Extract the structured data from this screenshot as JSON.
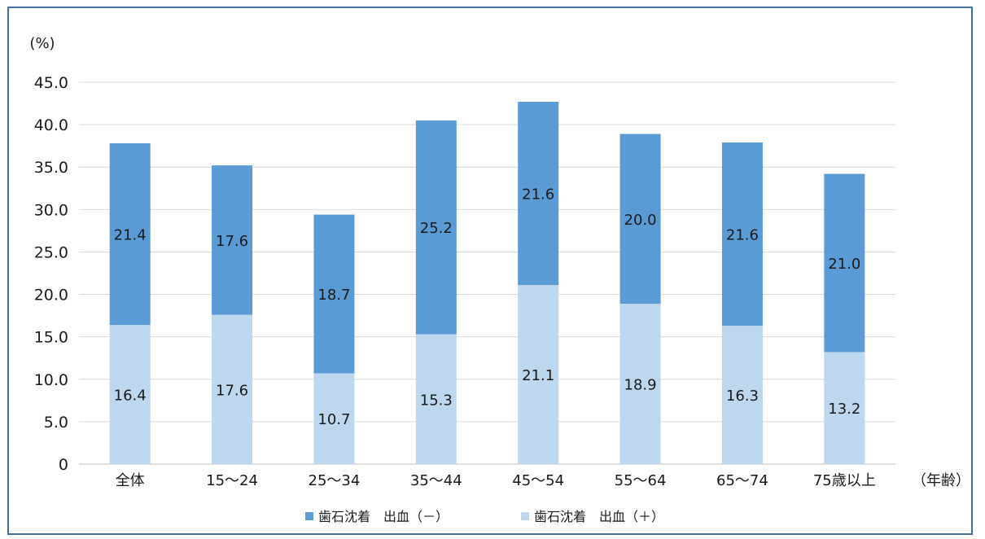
{
  "chart_data": {
    "type": "bar",
    "stacked": true,
    "ylabel": "(%)",
    "xlabel": "（年齢）",
    "ylim": [
      0,
      45
    ],
    "yticks": [
      "0",
      "5.0",
      "10.0",
      "15.0",
      "20.0",
      "25.0",
      "30.0",
      "35.0",
      "40.0",
      "45.0"
    ],
    "grid": true,
    "legend_position": "bottom",
    "categories": [
      "全体",
      "15～24",
      "25～34",
      "35～44",
      "45～54",
      "55～64",
      "65～74",
      "75歳以上"
    ],
    "series": [
      {
        "name": "歯石沈着　出血（＋）",
        "color": "#bdd7ee",
        "values": [
          16.4,
          17.6,
          10.7,
          15.3,
          21.1,
          18.9,
          16.3,
          13.2
        ],
        "labels": [
          "16.4",
          "17.6",
          "10.7",
          "15.3",
          "21.1",
          "18.9",
          "16.3",
          "13.2"
        ]
      },
      {
        "name": "歯石沈着　出血（－）",
        "color": "#5b9bd5",
        "values": [
          21.4,
          17.6,
          18.7,
          25.2,
          21.6,
          20.0,
          21.6,
          21.0
        ],
        "labels": [
          "21.4",
          "17.6",
          "18.7",
          "25.2",
          "21.6",
          "20.0",
          "21.6",
          "21.0"
        ]
      }
    ],
    "legend_order": [
      1,
      0
    ]
  },
  "colors": {
    "grid": "#d9d9d9",
    "axis": "#bfbfbf",
    "frame": "#41719c"
  }
}
